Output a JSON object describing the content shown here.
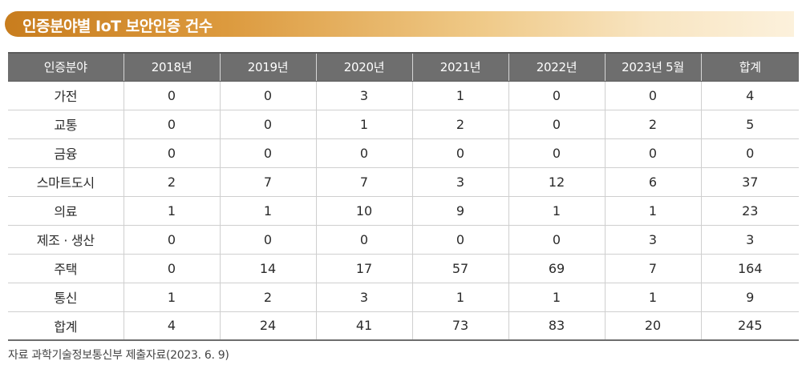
{
  "title": "인증분야별 IoT 보안인증 건수",
  "table": {
    "headers": [
      "인증분야",
      "2018년",
      "2019년",
      "2020년",
      "2021년",
      "2022년",
      "2023년 5월",
      "합계"
    ],
    "rows": [
      [
        "가전",
        "0",
        "0",
        "3",
        "1",
        "0",
        "0",
        "4"
      ],
      [
        "교통",
        "0",
        "0",
        "1",
        "2",
        "0",
        "2",
        "5"
      ],
      [
        "금융",
        "0",
        "0",
        "0",
        "0",
        "0",
        "0",
        "0"
      ],
      [
        "스마트도시",
        "2",
        "7",
        "7",
        "3",
        "12",
        "6",
        "37"
      ],
      [
        "의료",
        "1",
        "1",
        "10",
        "9",
        "1",
        "1",
        "23"
      ],
      [
        "제조 · 생산",
        "0",
        "0",
        "0",
        "0",
        "0",
        "3",
        "3"
      ],
      [
        "주택",
        "0",
        "14",
        "17",
        "57",
        "69",
        "7",
        "164"
      ],
      [
        "통신",
        "1",
        "2",
        "3",
        "1",
        "1",
        "1",
        "9"
      ],
      [
        "합계",
        "4",
        "24",
        "41",
        "73",
        "83",
        "20",
        "245"
      ]
    ]
  },
  "source": "자료 과학기술정보통신부 제출자료(2023. 6. 9)",
  "colors": {
    "title_gradient_start": "#c87d1e",
    "title_gradient_end": "#fcf1dc",
    "header_background": "#6e6e6e"
  }
}
